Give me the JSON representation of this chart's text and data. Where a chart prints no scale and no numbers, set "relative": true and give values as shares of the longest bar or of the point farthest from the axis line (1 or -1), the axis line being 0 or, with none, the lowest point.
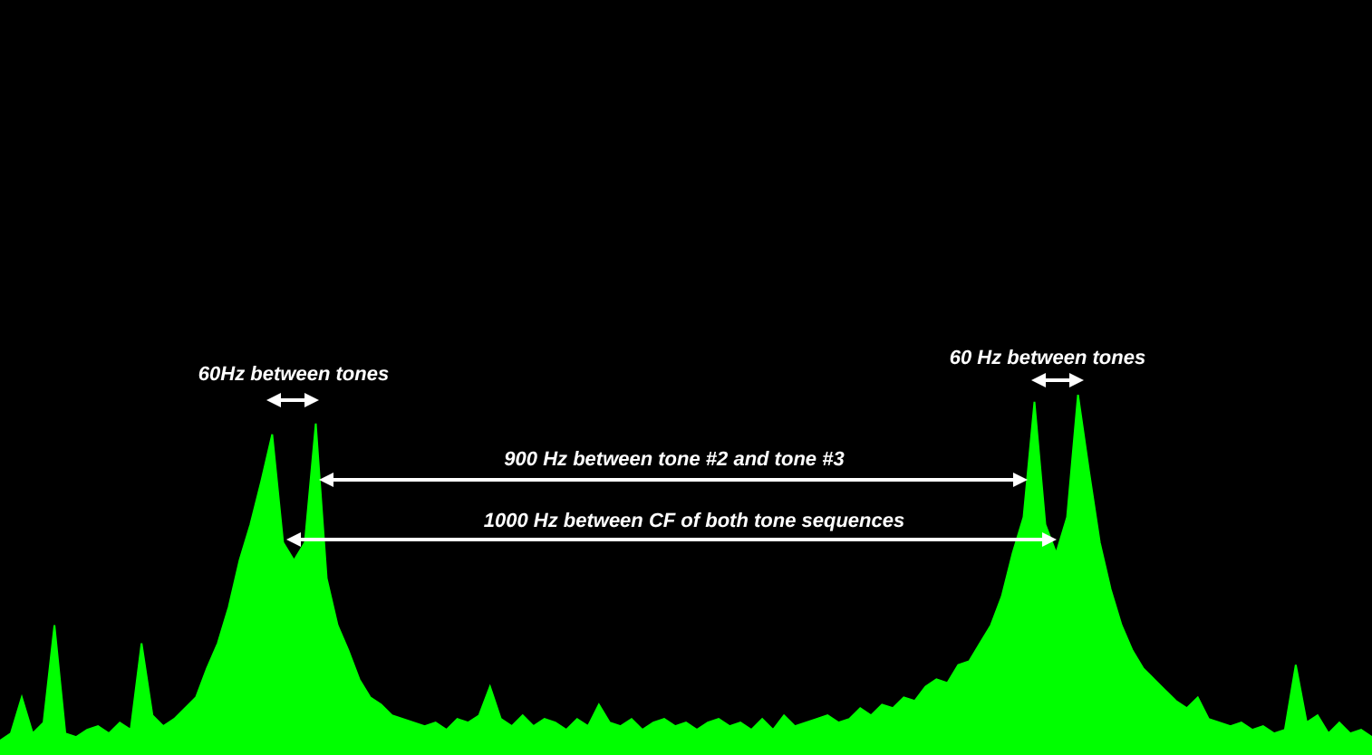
{
  "chart_data": {
    "type": "area",
    "relative": true,
    "color": "#00ff00",
    "grid": false,
    "legend": false,
    "categories": [
      null,
      null,
      null,
      null,
      null,
      null,
      null,
      null,
      null,
      null,
      null,
      null,
      null,
      null,
      null,
      null,
      null,
      null,
      null,
      null,
      null,
      null,
      null,
      null,
      null,
      null,
      null,
      null,
      null,
      null,
      null,
      null,
      null,
      null,
      null,
      null,
      null,
      null,
      null,
      null,
      null,
      null,
      null,
      null,
      null,
      null,
      null,
      null,
      null,
      null,
      null,
      null,
      null,
      null,
      null,
      null,
      null,
      null,
      null,
      null,
      null,
      null,
      null,
      null,
      null,
      null,
      null,
      null,
      null,
      null,
      null,
      null,
      null,
      null,
      null,
      null,
      null,
      null,
      null,
      null,
      null,
      null,
      null,
      null,
      null,
      null,
      null,
      null,
      null,
      null,
      null,
      null,
      null,
      null,
      null,
      null,
      null,
      null,
      null,
      null,
      null,
      null,
      null,
      null,
      null,
      null,
      null,
      null,
      null,
      null,
      null,
      null,
      null,
      null,
      null,
      null,
      null,
      null,
      null,
      null,
      null,
      null,
      null,
      null,
      null,
      null,
      null
    ],
    "values": [
      0.04,
      0.06,
      0.16,
      0.06,
      0.09,
      0.36,
      0.06,
      0.05,
      0.07,
      0.08,
      0.06,
      0.09,
      0.07,
      0.31,
      0.11,
      0.08,
      0.1,
      0.13,
      0.16,
      0.24,
      0.31,
      0.41,
      0.54,
      0.64,
      0.76,
      0.89,
      0.59,
      0.54,
      0.59,
      0.92,
      0.49,
      0.36,
      0.29,
      0.21,
      0.16,
      0.14,
      0.11,
      0.1,
      0.09,
      0.08,
      0.09,
      0.07,
      0.1,
      0.09,
      0.11,
      0.19,
      0.1,
      0.08,
      0.11,
      0.08,
      0.1,
      0.09,
      0.07,
      0.1,
      0.08,
      0.14,
      0.09,
      0.08,
      0.1,
      0.07,
      0.09,
      0.1,
      0.08,
      0.09,
      0.07,
      0.09,
      0.1,
      0.08,
      0.09,
      0.07,
      0.1,
      0.07,
      0.11,
      0.08,
      0.09,
      0.1,
      0.11,
      0.09,
      0.1,
      0.13,
      0.11,
      0.14,
      0.13,
      0.16,
      0.15,
      0.19,
      0.21,
      0.2,
      0.25,
      0.26,
      0.31,
      0.36,
      0.44,
      0.56,
      0.66,
      0.98,
      0.64,
      0.56,
      0.66,
      1,
      0.79,
      0.59,
      0.46,
      0.36,
      0.29,
      0.24,
      0.21,
      0.18,
      0.15,
      0.13,
      0.16,
      0.1,
      0.09,
      0.08,
      0.09,
      0.07,
      0.08,
      0.06,
      0.07,
      0.25,
      0.09,
      0.11,
      0.06,
      0.09,
      0.06,
      0.07,
      0.05
    ],
    "annotations": [
      "60Hz between tones",
      "900 Hz between tone #2 and tone #3",
      "1000 Hz between CF of both tone sequences",
      "60 Hz between tones"
    ]
  }
}
